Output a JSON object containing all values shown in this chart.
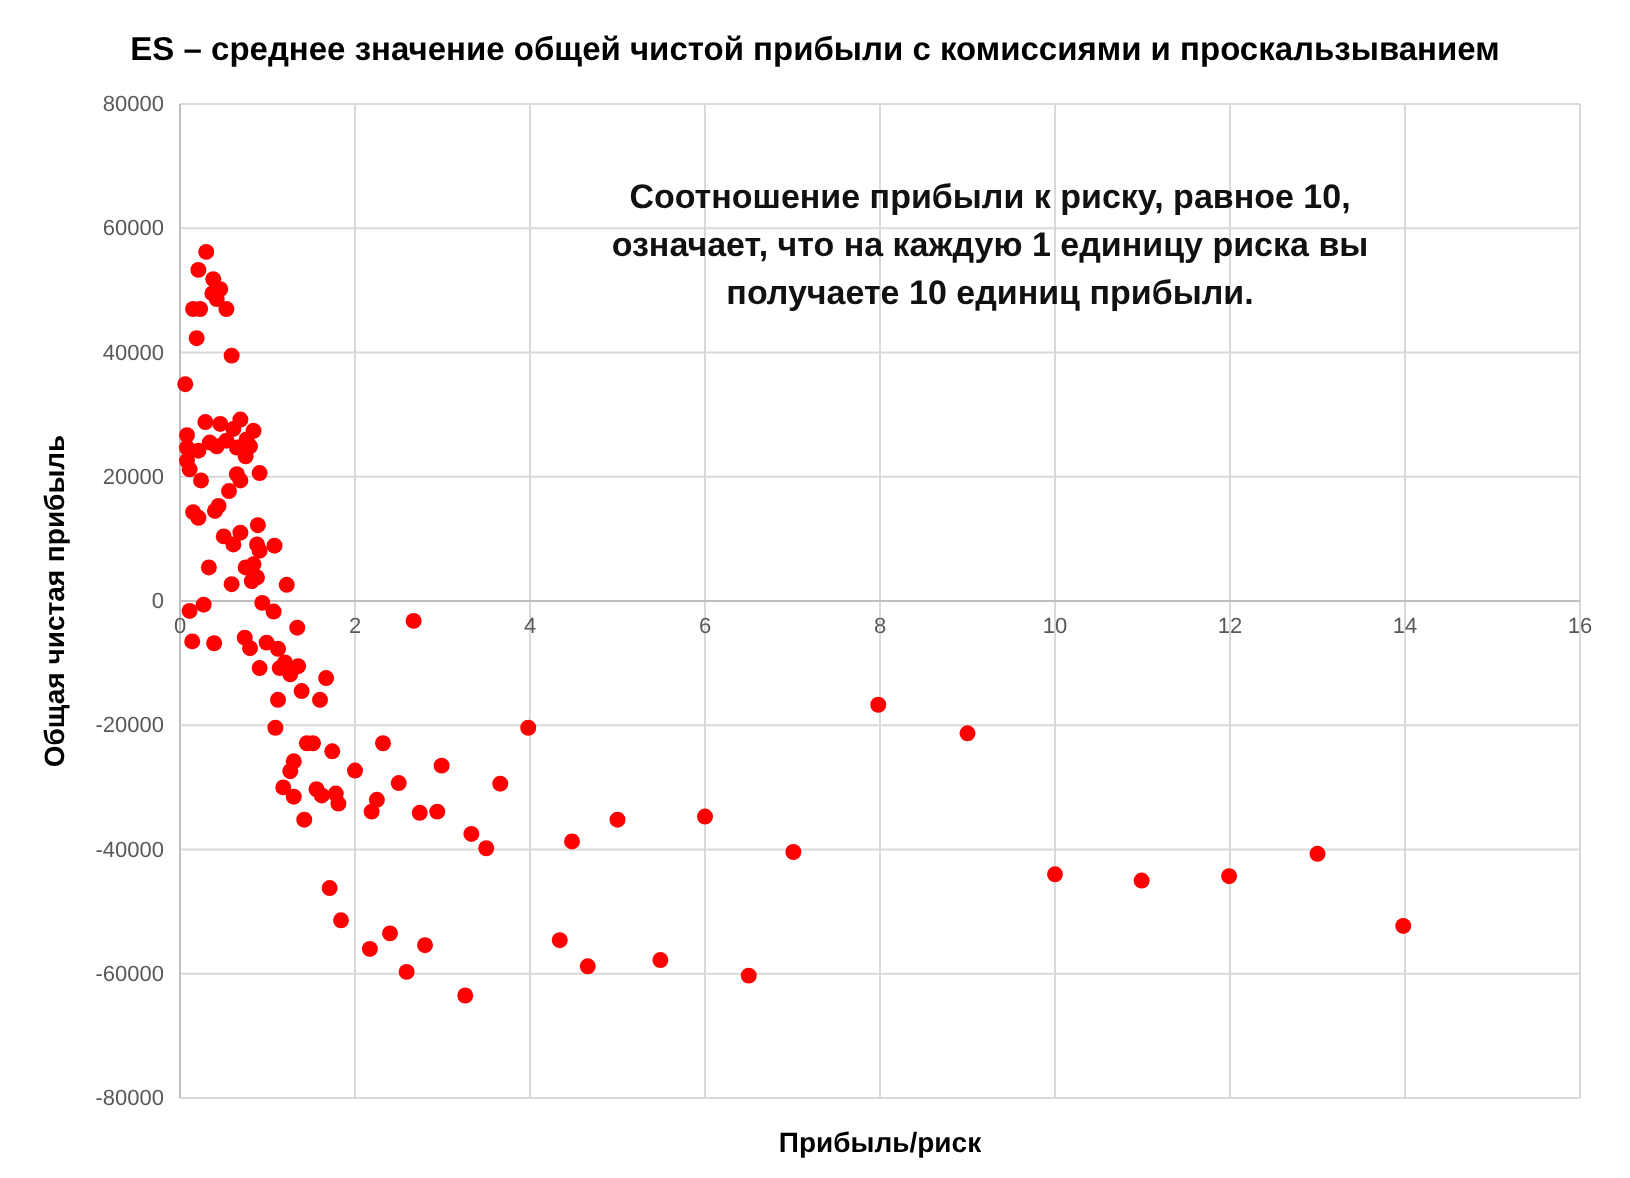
{
  "chart_data": {
    "type": "scatter",
    "title": "ES – среднее значение общей чистой прибыли с комиссиями и проскальзыванием",
    "xlabel": "Прибыль/риск",
    "ylabel": "Общая чистая прибыль",
    "annotations": [
      "Соотношение прибыли к риску, равное 10, означает, что на каждую 1 единицу риска вы получаете 10 единиц прибыли."
    ],
    "xlim": [
      0,
      16
    ],
    "ylim": [
      -80000,
      80000
    ],
    "xticks": [
      0,
      2,
      4,
      6,
      8,
      10,
      12,
      14,
      16
    ],
    "yticks": [
      -80000,
      -60000,
      -40000,
      -20000,
      0,
      20000,
      40000,
      60000,
      80000
    ],
    "grid": true,
    "marker": "circle",
    "series": [
      {
        "color": "#ff0000",
        "x": [
          0.3,
          0.21,
          0.38,
          0.46,
          0.37,
          0.42,
          0.15,
          0.23,
          0.53,
          0.19,
          0.59,
          0.06,
          0.29,
          0.46,
          0.69,
          0.61,
          0.84,
          0.08,
          0.34,
          0.53,
          0.76,
          0.08,
          0.21,
          0.42,
          0.65,
          0.8,
          0.75,
          0.08,
          0.11,
          0.91,
          0.65,
          0.69,
          0.24,
          0.56,
          0.44,
          0.4,
          0.15,
          0.21,
          0.89,
          0.5,
          0.69,
          0.61,
          0.88,
          0.91,
          1.08,
          0.75,
          0.84,
          0.88,
          0.82,
          0.33,
          0.59,
          1.22,
          0.11,
          0.27,
          0.14,
          0.39,
          0.94,
          1.07,
          1.34,
          0.74,
          0.8,
          0.99,
          1.12,
          0.91,
          1.14,
          1.2,
          1.26,
          1.35,
          1.67,
          1.12,
          1.39,
          1.6,
          1.09,
          1.45,
          1.52,
          1.74,
          2.32,
          1.3,
          1.26,
          2.0,
          2.5,
          1.18,
          1.3,
          1.56,
          1.62,
          1.78,
          1.81,
          2.25,
          2.19,
          2.94,
          1.42,
          2.67,
          3.98,
          2.99,
          3.66,
          2.74,
          3.33,
          3.5,
          4.48,
          5.0,
          6.0,
          7.01,
          1.71,
          1.84,
          2.4,
          2.17,
          2.8,
          4.34,
          2.59,
          4.66,
          5.49,
          6.5,
          3.26,
          7.98,
          9.0,
          10.0,
          10.99,
          11.99,
          13.0,
          13.98
        ],
        "values": [
          56200,
          53300,
          51800,
          50200,
          49500,
          48600,
          47000,
          47000,
          47000,
          42300,
          39500,
          34900,
          28800,
          28500,
          29200,
          27700,
          27400,
          26700,
          25500,
          25800,
          26000,
          24700,
          24200,
          24900,
          24700,
          24900,
          23300,
          22600,
          21200,
          20600,
          20400,
          19400,
          19400,
          17700,
          15300,
          14500,
          14300,
          13400,
          12200,
          10400,
          11000,
          9100,
          9100,
          8100,
          8900,
          5400,
          5900,
          3800,
          3200,
          5400,
          2700,
          2600,
          -1600,
          -600,
          -6500,
          -6800,
          -300,
          -1700,
          -4300,
          -5900,
          -7600,
          -6700,
          -7700,
          -10800,
          -10800,
          -9900,
          -11800,
          -10500,
          -12400,
          -15900,
          -14500,
          -15900,
          -20400,
          -22900,
          -22900,
          -24200,
          -22900,
          -25800,
          -27400,
          -27300,
          -29300,
          -30000,
          -31500,
          -30300,
          -31300,
          -31000,
          -32600,
          -32000,
          -33900,
          -33900,
          -35200,
          -3200,
          -20400,
          -26500,
          -29400,
          -34100,
          -37500,
          -39800,
          -38700,
          -35200,
          -34700,
          -40400,
          -46200,
          -51400,
          -53500,
          -56000,
          -55400,
          -54600,
          -59700,
          -58800,
          -57800,
          -60300,
          -63500,
          -16700,
          -21300,
          -44000,
          -45000,
          -44300,
          -40700,
          -52300
        ]
      }
    ]
  }
}
